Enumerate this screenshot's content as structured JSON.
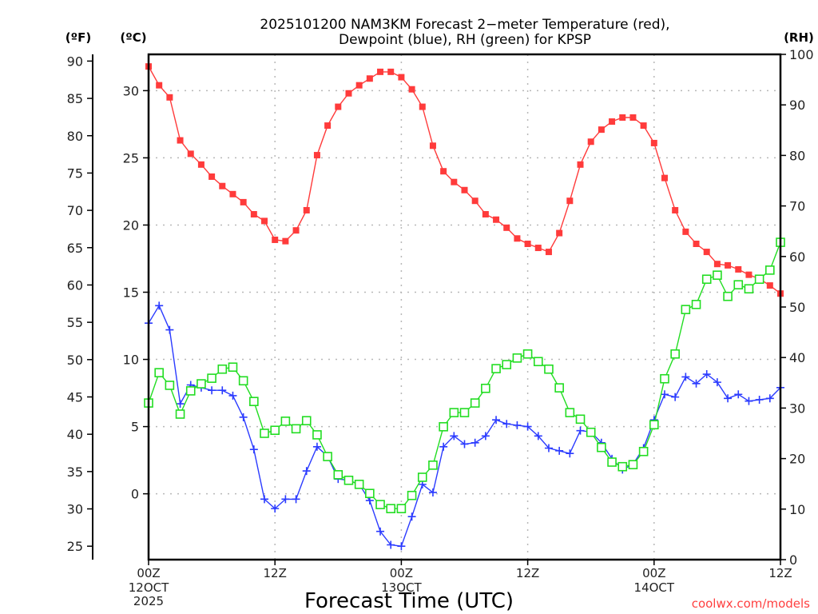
{
  "chart_data": {
    "type": "line",
    "title": "2025101200 NAM3KM Forecast 2−meter Temperature (red),",
    "subtitle": "Dewpoint (blue), RH (green) for KPSP",
    "xlabel": "Forecast Time (UTC)",
    "credit": "coolwx.com/models",
    "units": {
      "fahrenheit": "(ºF)",
      "celsius": "(ºC)",
      "rh": "(RH)"
    },
    "x_hours": {
      "start": 0,
      "end": 60,
      "step": 1
    },
    "x_ticks": [
      {
        "hour": 0,
        "label": "00Z",
        "date": "12OCT",
        "year": "2025"
      },
      {
        "hour": 12,
        "label": "12Z"
      },
      {
        "hour": 24,
        "label": "00Z",
        "date": "13OCT"
      },
      {
        "hour": 36,
        "label": "12Z"
      },
      {
        "hour": 48,
        "label": "00Z",
        "date": "14OCT"
      },
      {
        "hour": 60,
        "label": "12Z"
      }
    ],
    "axes": {
      "celsius": {
        "range": [
          -4.9,
          32.7
        ],
        "ticks": [
          0,
          5,
          10,
          15,
          20,
          25,
          30
        ]
      },
      "fahrenheit": {
        "range": [
          23.2,
          90.9
        ],
        "ticks": [
          25,
          30,
          35,
          40,
          45,
          50,
          55,
          60,
          65,
          70,
          75,
          80,
          85,
          90
        ]
      },
      "rh": {
        "range": [
          0,
          100
        ],
        "ticks": [
          0,
          10,
          20,
          30,
          40,
          50,
          60,
          70,
          80,
          90,
          100
        ]
      }
    },
    "grid": true,
    "series": [
      {
        "name": "Temperature",
        "axis": "celsius",
        "color": "#ff3b3b",
        "marker": "filled-square",
        "values": [
          31.8,
          30.4,
          29.5,
          26.3,
          25.3,
          24.5,
          23.6,
          22.9,
          22.3,
          21.7,
          20.8,
          20.3,
          18.9,
          18.8,
          19.6,
          21.1,
          25.2,
          27.4,
          28.8,
          29.8,
          30.4,
          30.9,
          31.4,
          31.4,
          31.0,
          30.1,
          28.8,
          25.9,
          24.0,
          23.2,
          22.6,
          21.8,
          20.8,
          20.4,
          19.8,
          19.0,
          18.6,
          18.3,
          18.0,
          19.4,
          21.8,
          24.5,
          26.2,
          27.1,
          27.7,
          28.0,
          28.0,
          27.4,
          26.1,
          23.5,
          21.1,
          19.5,
          18.6,
          18.0,
          17.1,
          17.0,
          16.7,
          16.3,
          16.0,
          15.5,
          14.9
        ]
      },
      {
        "name": "Dewpoint",
        "axis": "celsius",
        "color": "#2b3bff",
        "marker": "plus",
        "values": [
          12.7,
          14.0,
          12.2,
          6.7,
          8.1,
          7.9,
          7.7,
          7.7,
          7.3,
          5.7,
          3.3,
          -0.4,
          -1.1,
          -0.4,
          -0.4,
          1.7,
          3.5,
          2.8,
          1.1,
          1.0,
          0.7,
          -0.5,
          -2.8,
          -3.8,
          -3.9,
          -1.7,
          0.7,
          0.1,
          3.5,
          4.3,
          3.7,
          3.8,
          4.3,
          5.5,
          5.2,
          5.1,
          5.0,
          4.3,
          3.4,
          3.2,
          3.0,
          4.7,
          4.6,
          3.8,
          2.6,
          1.8,
          2.2,
          3.4,
          5.5,
          7.4,
          7.2,
          8.7,
          8.2,
          8.9,
          8.3,
          7.1,
          7.4,
          6.9,
          7.0,
          7.1,
          7.9
        ]
      },
      {
        "name": "RH",
        "axis": "rh",
        "color": "#22dd22",
        "marker": "open-square",
        "values": [
          31.0,
          37.0,
          34.5,
          28.8,
          33.4,
          34.8,
          35.9,
          37.7,
          38.1,
          35.4,
          31.3,
          25.0,
          25.6,
          27.4,
          25.9,
          27.5,
          24.7,
          20.4,
          16.8,
          15.7,
          14.9,
          13.1,
          10.9,
          10.1,
          10.1,
          12.7,
          16.3,
          18.7,
          26.3,
          29.1,
          29.1,
          31.0,
          33.9,
          37.8,
          38.6,
          39.9,
          40.7,
          39.2,
          37.7,
          34.0,
          29.1,
          27.8,
          25.2,
          22.2,
          19.3,
          18.4,
          18.8,
          21.4,
          26.7,
          35.8,
          40.7,
          49.5,
          50.5,
          55.5,
          56.3,
          52.1,
          54.4,
          53.6,
          55.5,
          57.3,
          62.8
        ]
      }
    ]
  }
}
